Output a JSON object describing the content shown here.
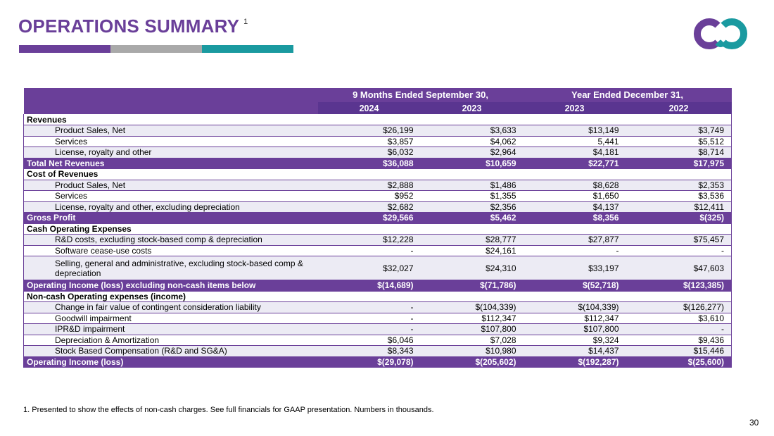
{
  "title": "OPERATIONS SUMMARY",
  "title_footnote_mark": "1",
  "colors": {
    "purple": "#6a3f99",
    "gray": "#a9a9a9",
    "teal": "#1a9aa0",
    "shade": "#ecebf4"
  },
  "logo_icon": "co-logo-icon",
  "header": {
    "period1": "9 Months Ended September 30,",
    "period2": "Year Ended December 31,",
    "years": [
      "2024",
      "2023",
      "2023",
      "2022"
    ]
  },
  "rows": [
    {
      "type": "section",
      "label": "Revenues"
    },
    {
      "type": "item",
      "label": "Product Sales, Net",
      "values": [
        "$26,199",
        "$3,633",
        "$13,149",
        "$3,749"
      ]
    },
    {
      "type": "item",
      "label": "Services",
      "values": [
        "$3,857",
        "$4,062",
        "5,441",
        "$5,512"
      ]
    },
    {
      "type": "item",
      "label": "License, royalty and other",
      "values": [
        "$6,032",
        "$2,964",
        "$4,181",
        "$8,714"
      ]
    },
    {
      "type": "total",
      "label": "Total Net Revenues",
      "values": [
        "$36,088",
        "$10,659",
        "$22,771",
        "$17,975"
      ]
    },
    {
      "type": "section",
      "label": "Cost of Revenues"
    },
    {
      "type": "item",
      "label": "Product Sales, Net",
      "values": [
        "$2,888",
        "$1,486",
        "$8,628",
        "$2,353"
      ]
    },
    {
      "type": "item",
      "label": "Services",
      "values": [
        "$952",
        "$1,355",
        "$1,650",
        "$3,536"
      ]
    },
    {
      "type": "item",
      "label": "License, royalty and other, excluding depreciation",
      "values": [
        "$2,682",
        "$2,356",
        "$4,137",
        "$12,411"
      ]
    },
    {
      "type": "total",
      "label": "Gross Profit",
      "values": [
        "$29,566",
        "$5,462",
        "$8,356",
        "$(325)"
      ]
    },
    {
      "type": "section",
      "label": "Cash Operating Expenses"
    },
    {
      "type": "item",
      "label": "R&D costs, excluding stock-based comp & depreciation",
      "values": [
        "$12,228",
        "$28,777",
        "$27,877",
        "$75,457"
      ]
    },
    {
      "type": "item",
      "label": "Software cease-use costs",
      "values": [
        "-",
        "$24,161",
        "-",
        "-"
      ]
    },
    {
      "type": "item-tall",
      "label": "Selling, general and administrative, excluding stock-based comp & depreciation",
      "values": [
        "$32,027",
        "$24,310",
        "$33,197",
        "$47,603"
      ]
    },
    {
      "type": "total",
      "label": "Operating Income (loss) excluding non-cash items below",
      "values": [
        "$(14,689)",
        "$(71,786)",
        "$(52,718)",
        "$(123,385)"
      ]
    },
    {
      "type": "section",
      "label": "Non-cash Operating expenses (income)"
    },
    {
      "type": "item",
      "label": "Change in fair value of contingent consideration liability",
      "values": [
        "-",
        "$(104,339)",
        "$(104,339)",
        "$(126,277)"
      ]
    },
    {
      "type": "item",
      "label": "Goodwill impairment",
      "values": [
        "-",
        "$112,347",
        "$112,347",
        "$3,610"
      ]
    },
    {
      "type": "item",
      "label": "IPR&D impairment",
      "values": [
        "-",
        "$107,800",
        "$107,800",
        "-"
      ]
    },
    {
      "type": "item",
      "label": "Depreciation & Amortization",
      "values": [
        "$6,046",
        "$7,028",
        "$9,324",
        "$9,436"
      ]
    },
    {
      "type": "item",
      "label": "Stock Based Compensation (R&D and SG&A)",
      "values": [
        "$8,343",
        "$10,980",
        "$14,437",
        "$15,446"
      ]
    },
    {
      "type": "total",
      "label": "Operating Income (loss)",
      "values": [
        "$(29,078)",
        "$(205,602)",
        "$(192,287)",
        "$(25,600)"
      ]
    }
  ],
  "footnote": "1.  Presented to show the effects of non-cash charges. See full financials for GAAP presentation. Numbers in thousands.",
  "page_number": "30"
}
